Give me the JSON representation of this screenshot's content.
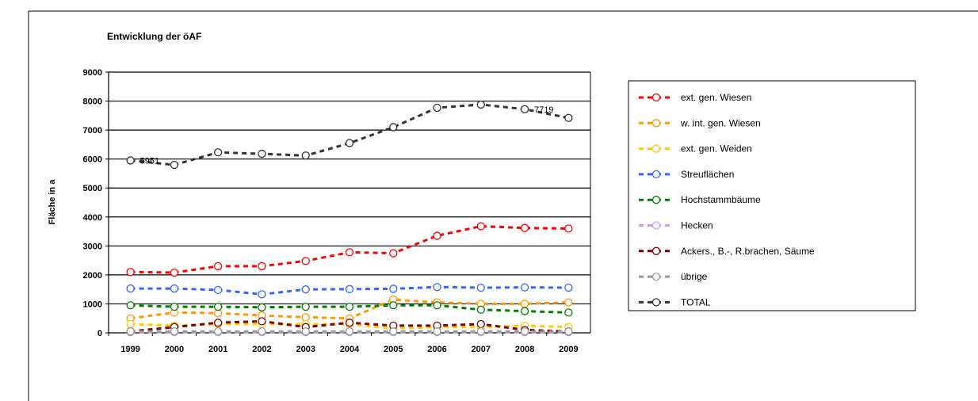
{
  "chart_data": {
    "type": "line",
    "title": "Entwicklung der öAF",
    "ylabel": "Fläche in a",
    "xlabel": "",
    "ylim": [
      0,
      9000
    ],
    "yticks": [
      "0",
      "1000",
      "2000",
      "3000",
      "4000",
      "5000",
      "6000",
      "7000",
      "8000",
      "9000"
    ],
    "categories": [
      "1999",
      "2000",
      "2001",
      "2002",
      "2003",
      "2004",
      "2005",
      "2006",
      "2007",
      "2008",
      "2009"
    ],
    "grid": "horizontal",
    "legend_position": "right",
    "series": [
      {
        "name": "ext. gen. Wiesen",
        "color": "#ff0000",
        "values": [
          2100,
          2080,
          2300,
          2300,
          2480,
          2780,
          2750,
          3350,
          3680,
          3620,
          3600
        ]
      },
      {
        "name": "w. int. gen. Wiesen",
        "color": "#ff9900",
        "values": [
          500,
          700,
          680,
          600,
          540,
          500,
          1150,
          1050,
          1000,
          1000,
          1050
        ]
      },
      {
        "name": "ext. gen. Weiden",
        "color": "#ffcc00",
        "values": [
          300,
          250,
          300,
          300,
          300,
          300,
          150,
          200,
          200,
          250,
          200
        ]
      },
      {
        "name": "Streuflächen",
        "color": "#3366ff",
        "values": [
          1530,
          1530,
          1480,
          1330,
          1500,
          1510,
          1520,
          1580,
          1560,
          1570,
          1560
        ]
      },
      {
        "name": "Hochstammbäume",
        "color": "#008000",
        "values": [
          950,
          900,
          900,
          880,
          900,
          900,
          950,
          950,
          800,
          750,
          700
        ]
      },
      {
        "name": "Hecken",
        "color": "#cc99ff",
        "values": [
          20,
          20,
          20,
          20,
          20,
          20,
          20,
          20,
          20,
          20,
          20
        ]
      },
      {
        "name": "Ackers., B.-, R.brachen, Säume",
        "color": "#800000",
        "values": [
          50,
          200,
          350,
          400,
          200,
          350,
          250,
          250,
          300,
          100,
          50
        ]
      },
      {
        "name": "übrige",
        "color": "#999999",
        "values": [
          50,
          50,
          50,
          50,
          50,
          50,
          50,
          50,
          50,
          50,
          50
        ]
      },
      {
        "name": "TOTAL",
        "color": "#333333",
        "values": [
          5951,
          5800,
          6230,
          6180,
          6120,
          6550,
          7100,
          7770,
          7880,
          7719,
          7420
        ]
      }
    ],
    "data_labels": [
      {
        "series": "TOTAL",
        "category": "1999",
        "text": "5951"
      },
      {
        "series": "TOTAL",
        "category": "2008",
        "text": "7719"
      }
    ]
  }
}
